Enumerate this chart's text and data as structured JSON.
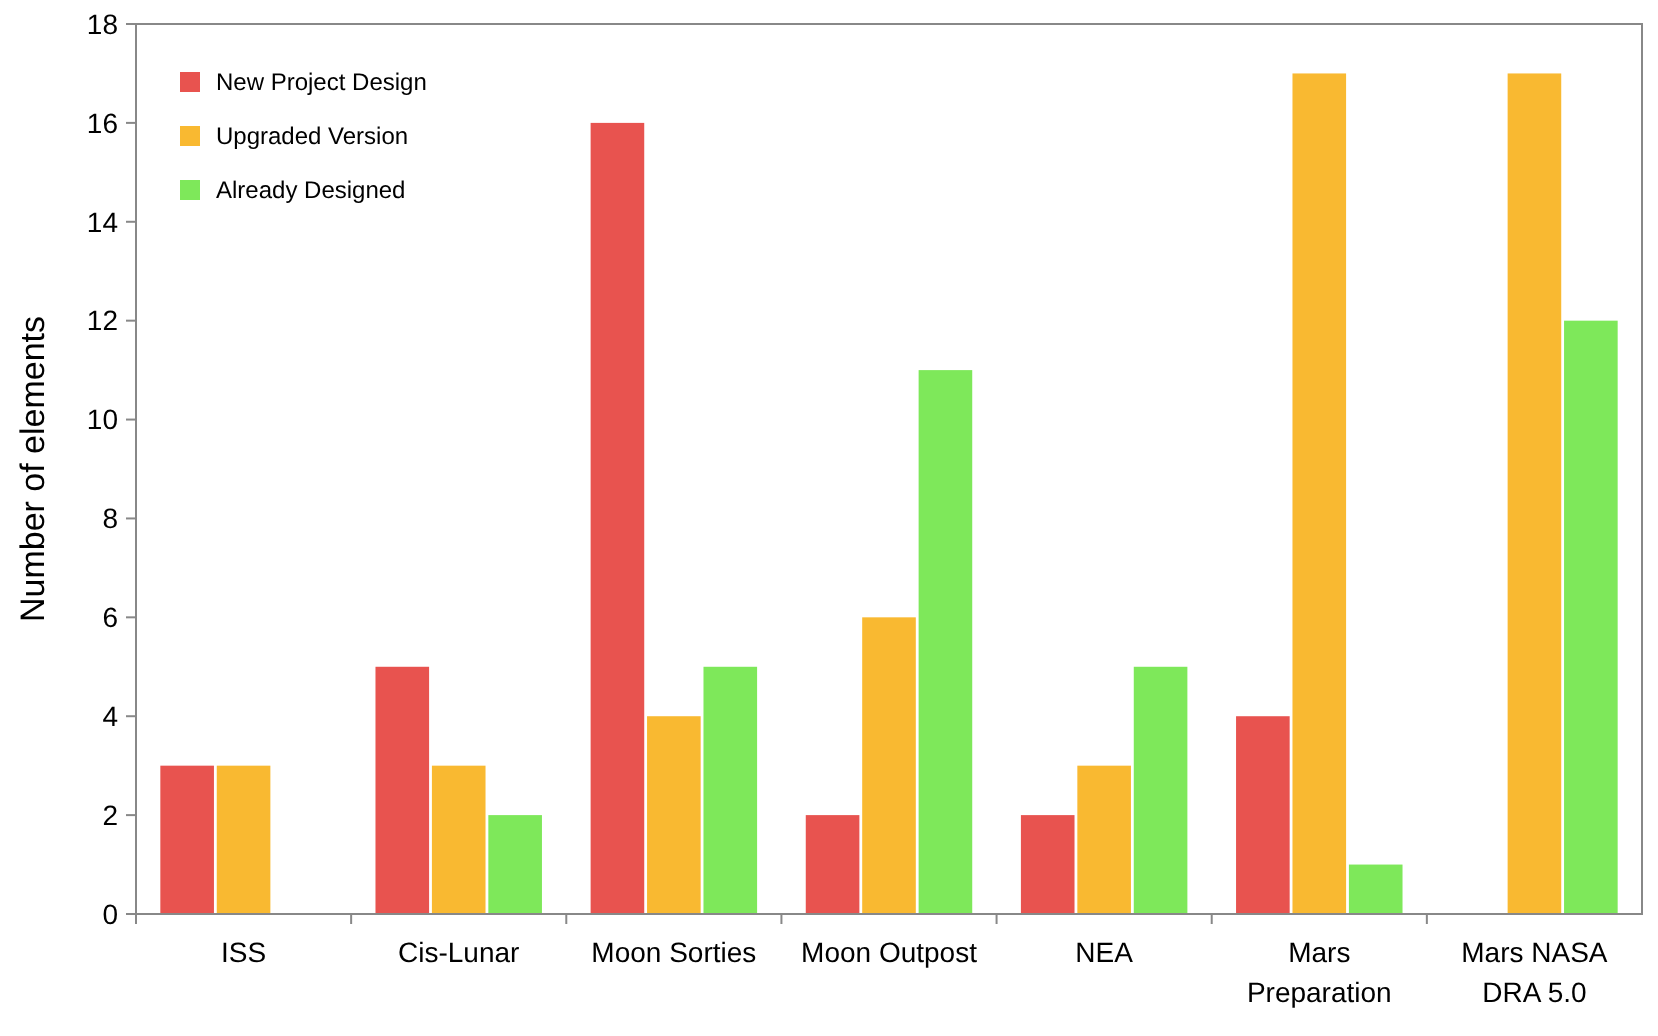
{
  "chart_data": {
    "type": "bar",
    "ylabel": "Number of elements",
    "categories": [
      "ISS",
      "Cis-Lunar",
      "Moon Sorties",
      "Moon Outpost",
      "NEA",
      "Mars Preparation",
      "Mars NASA DRA 5.0"
    ],
    "series": [
      {
        "name": "New Project Design",
        "color": "#e8534f",
        "values": [
          3,
          5,
          16,
          2,
          2,
          4,
          0
        ]
      },
      {
        "name": "Upgraded Version",
        "color": "#f9b931",
        "values": [
          3,
          3,
          4,
          6,
          3,
          17,
          17
        ]
      },
      {
        "name": "Already Designed",
        "color": "#7ee85a",
        "values": [
          0,
          2,
          5,
          11,
          5,
          1,
          12
        ]
      }
    ],
    "ylim": [
      0,
      18
    ],
    "yticks": [
      0,
      2,
      4,
      6,
      8,
      10,
      12,
      14,
      16,
      18
    ],
    "grid": false,
    "legend": "top left"
  }
}
